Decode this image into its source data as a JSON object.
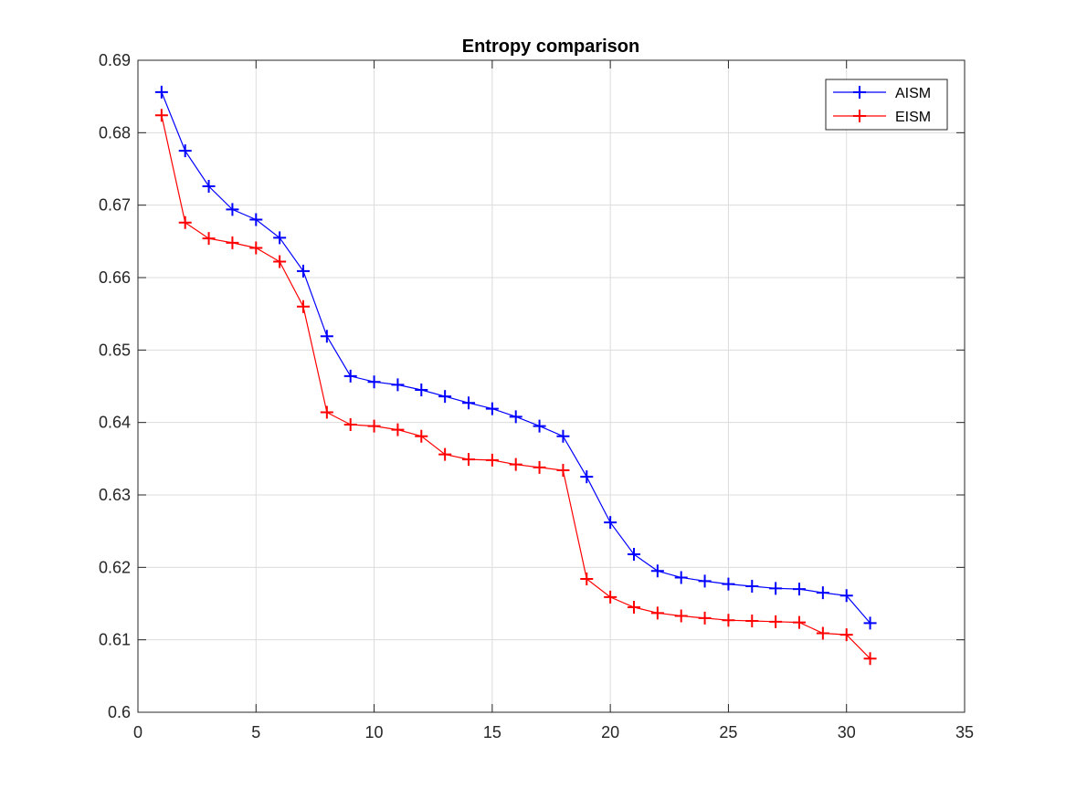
{
  "chart_data": {
    "type": "line",
    "title": "Entropy comparison",
    "xlabel": "",
    "ylabel": "",
    "xlim": [
      0,
      35
    ],
    "ylim": [
      0.6,
      0.69
    ],
    "xticks": [
      0,
      5,
      10,
      15,
      20,
      25,
      30,
      35
    ],
    "yticks": [
      0.6,
      0.61,
      0.62,
      0.63,
      0.64,
      0.65,
      0.66,
      0.67,
      0.68,
      0.69
    ],
    "xtick_labels": [
      "0",
      "5",
      "10",
      "15",
      "20",
      "25",
      "30",
      "35"
    ],
    "ytick_labels": [
      "0.6",
      "0.61",
      "0.62",
      "0.63",
      "0.64",
      "0.65",
      "0.66",
      "0.67",
      "0.68",
      "0.69"
    ],
    "grid": true,
    "legend_position": "top-right",
    "marker": "+",
    "x": [
      1,
      2,
      3,
      4,
      5,
      6,
      7,
      8,
      9,
      10,
      11,
      12,
      13,
      14,
      15,
      16,
      17,
      18,
      19,
      20,
      21,
      22,
      23,
      24,
      25,
      26,
      27,
      28,
      29,
      30,
      31
    ],
    "series": [
      {
        "name": "AISM",
        "color": "#0000ff",
        "values": [
          0.6856,
          0.6775,
          0.6726,
          0.6694,
          0.668,
          0.6655,
          0.6609,
          0.6519,
          0.6464,
          0.6456,
          0.6452,
          0.6445,
          0.6436,
          0.6427,
          0.6419,
          0.6408,
          0.6395,
          0.6381,
          0.6325,
          0.6262,
          0.6218,
          0.6195,
          0.6186,
          0.6181,
          0.6177,
          0.6174,
          0.6171,
          0.617,
          0.6165,
          0.6161,
          0.6123
        ]
      },
      {
        "name": "EISM",
        "color": "#ff0000",
        "values": [
          0.6824,
          0.6676,
          0.6654,
          0.6648,
          0.6641,
          0.6622,
          0.656,
          0.6414,
          0.6397,
          0.6395,
          0.639,
          0.6381,
          0.6356,
          0.6349,
          0.6348,
          0.6342,
          0.6338,
          0.6334,
          0.6184,
          0.6159,
          0.6145,
          0.6137,
          0.6133,
          0.613,
          0.6127,
          0.6126,
          0.6125,
          0.6124,
          0.6109,
          0.6107,
          0.6074
        ]
      }
    ]
  }
}
